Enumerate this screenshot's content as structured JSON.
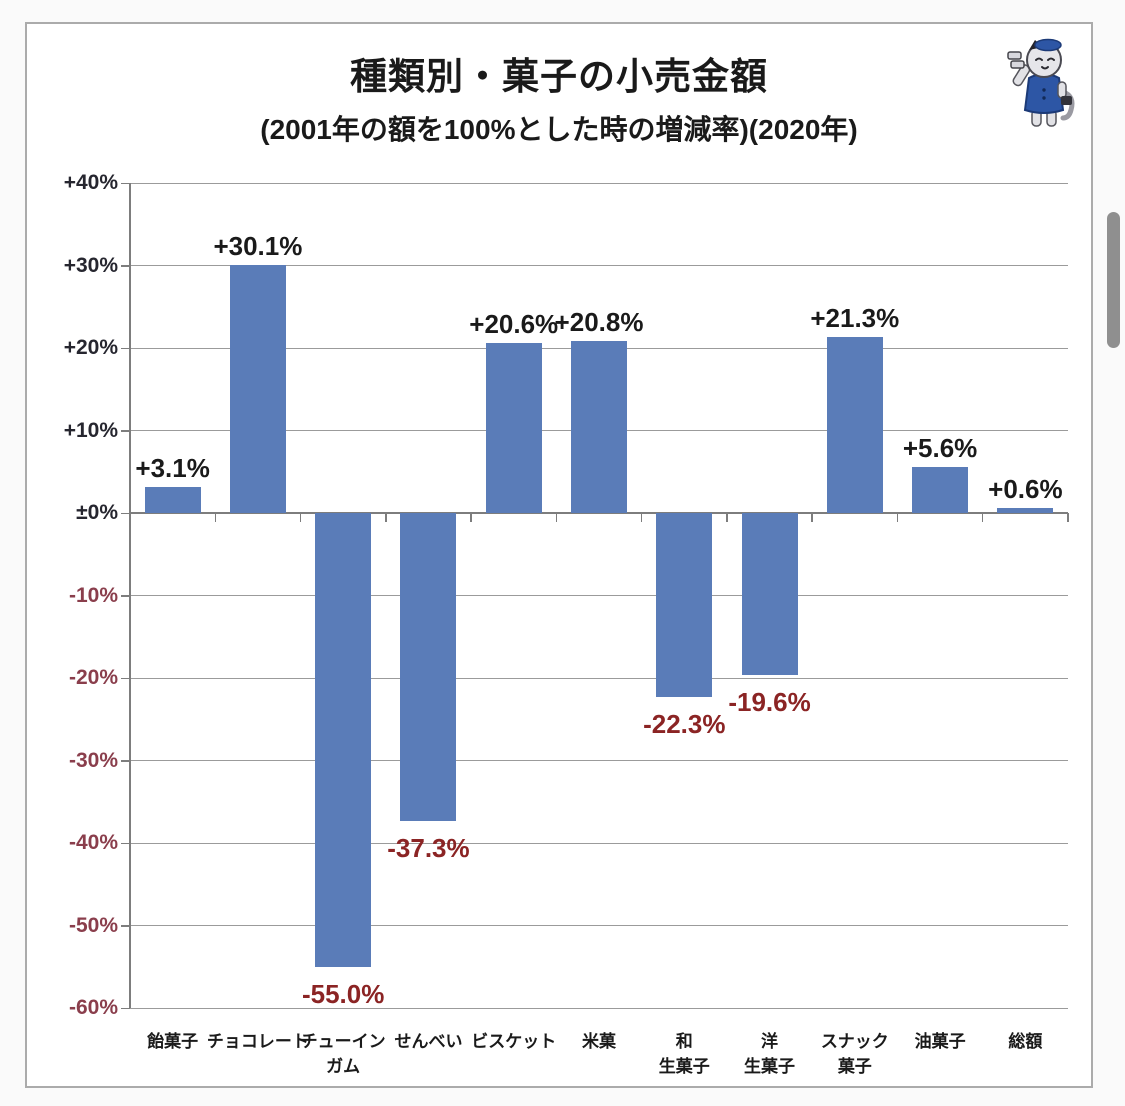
{
  "header": {
    "title": "種類別・菓子の小売金額",
    "subtitle": "(2001年の額を100%とした時の増減率)(2020年)"
  },
  "icons": {
    "mascot": "mascot-cat-icon",
    "scrollbar": "scrollbar-thumb"
  },
  "chart_data": {
    "type": "bar",
    "title": "種類別・菓子の小売金額",
    "subtitle": "(2001年の額を100%とした時の増減率)(2020年)",
    "unit": "%",
    "categories": [
      "飴菓子",
      "チョコレート",
      "チューイン\nガム",
      "せんべい",
      "ビスケット",
      "米菓",
      "和\n生菓子",
      "洋\n生菓子",
      "スナック\n菓子",
      "油菓子",
      "総額"
    ],
    "values": [
      3.1,
      30.1,
      -55.0,
      -37.3,
      20.6,
      20.8,
      -22.3,
      -19.6,
      21.3,
      5.6,
      0.6
    ],
    "point_labels": [
      "+3.1%",
      "+30.1%",
      "-55.0%",
      "-37.3%",
      "+20.6%",
      "+20.8%",
      "-22.3%",
      "-19.6%",
      "+21.3%",
      "+5.6%",
      "+0.6%"
    ],
    "yticks": [
      {
        "label": "+40%",
        "value": 40
      },
      {
        "label": "+30%",
        "value": 30
      },
      {
        "label": "+20%",
        "value": 20
      },
      {
        "label": "+10%",
        "value": 10
      },
      {
        "label": "±0%",
        "value": 0
      },
      {
        "label": "-10%",
        "value": -10
      },
      {
        "label": "-20%",
        "value": -20
      },
      {
        "label": "-30%",
        "value": -30
      },
      {
        "label": "-40%",
        "value": -40
      },
      {
        "label": "-50%",
        "value": -50
      },
      {
        "label": "-60%",
        "value": -60
      }
    ],
    "ylim": [
      -60,
      40
    ],
    "grid": true,
    "legend": false,
    "colors": {
      "bar": "#5a7cb8",
      "positive_data_label": "#1a1a1a",
      "negative_data_label": "#8b2424",
      "positive_tick_label": "#26262f",
      "negative_tick_label": "#8a3e4c",
      "gridline": "#9b9b9b",
      "axis": "#7d7d7d"
    }
  }
}
